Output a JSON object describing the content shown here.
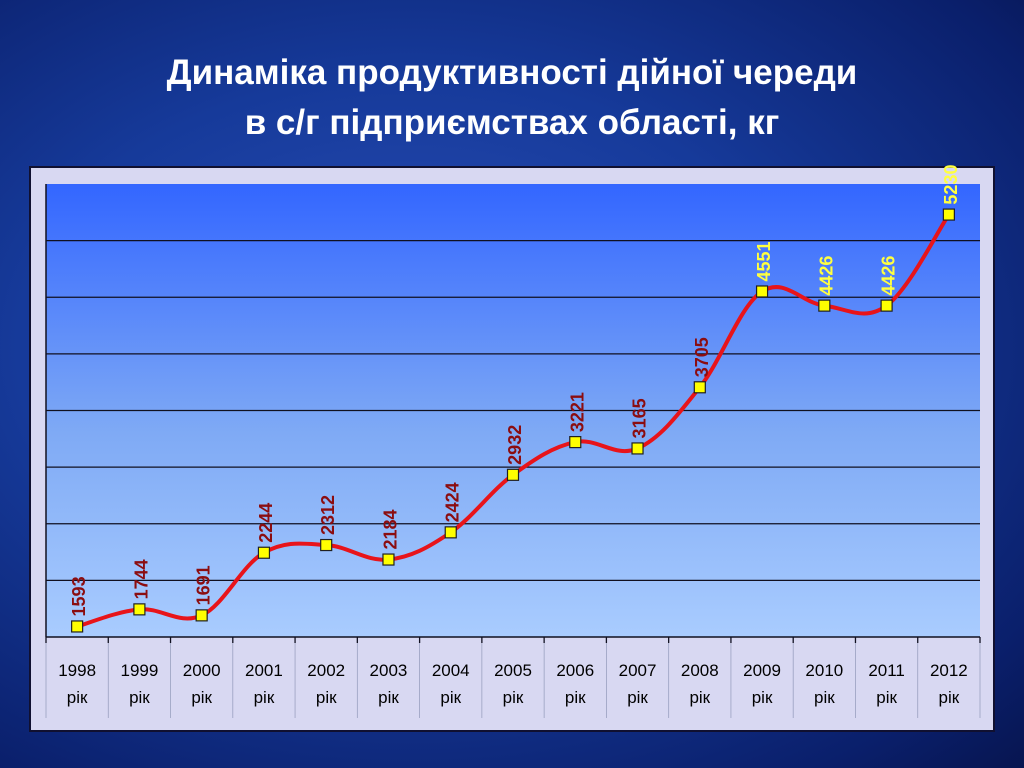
{
  "title": {
    "line1": "Динаміка продуктивності дійної череди",
    "line2": "в с/г підприємствах області, кг"
  },
  "colors": {
    "line": "#e8141a",
    "marker_fill": "#ffff00",
    "label_low": "#8b0d10",
    "label_high": "#ffff40"
  },
  "chart_data": {
    "type": "line",
    "title": "Динаміка продуктивності дійної череди в с/г підприємствах області, кг",
    "categories": [
      "1998 рік",
      "1999 рік",
      "2000 рік",
      "2001 рік",
      "2002 рік",
      "2003 рік",
      "2004 рік",
      "2005 рік",
      "2006 рік",
      "2007 рік",
      "2008 рік",
      "2009 рік",
      "2010 рік",
      "2011 рік",
      "2012 рік"
    ],
    "category_years": [
      "1998",
      "1999",
      "2000",
      "2001",
      "2002",
      "2003",
      "2004",
      "2005",
      "2006",
      "2007",
      "2008",
      "2009",
      "2010",
      "2011",
      "2012"
    ],
    "category_suffix": "рік",
    "values": [
      1593,
      1744,
      1691,
      2244,
      2312,
      2184,
      2424,
      2932,
      3221,
      3165,
      3705,
      4551,
      4426,
      4426,
      5230
    ],
    "data_labels": [
      "1593",
      "1744",
      "1691",
      "2244",
      "2312",
      "2184",
      "2424",
      "2932",
      "3221",
      "3165",
      "3705",
      "4551",
      "4426",
      "4426",
      "5230"
    ],
    "highlight_from_index": 11,
    "ylim": [
      1500,
      5500
    ],
    "grid": true,
    "y_tick_labels_shown": false,
    "smooth": true
  }
}
